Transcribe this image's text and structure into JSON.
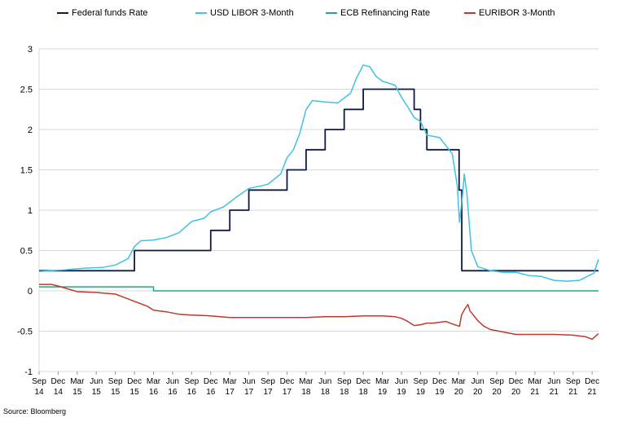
{
  "chart_data": {
    "type": "line",
    "title": "",
    "xlabel": "",
    "ylabel": "",
    "ylim": [
      -1,
      3
    ],
    "yticks": [
      "3",
      "2.5",
      "2",
      "1.5",
      "1",
      "0.5",
      "0",
      "-0.5",
      "-1"
    ],
    "x_ticks": [
      {
        "month": "Sep",
        "year": "14"
      },
      {
        "month": "Dec",
        "year": "14"
      },
      {
        "month": "Mar",
        "year": "15"
      },
      {
        "month": "Jun",
        "year": "15"
      },
      {
        "month": "Sep",
        "year": "15"
      },
      {
        "month": "Dec",
        "year": "15"
      },
      {
        "month": "Mar",
        "year": "16"
      },
      {
        "month": "Jun",
        "year": "16"
      },
      {
        "month": "Sep",
        "year": "16"
      },
      {
        "month": "Dec",
        "year": "16"
      },
      {
        "month": "Mar",
        "year": "17"
      },
      {
        "month": "Jun",
        "year": "17"
      },
      {
        "month": "Sep",
        "year": "17"
      },
      {
        "month": "Dec",
        "year": "17"
      },
      {
        "month": "Mar",
        "year": "18"
      },
      {
        "month": "Jun",
        "year": "18"
      },
      {
        "month": "Sep",
        "year": "18"
      },
      {
        "month": "Dec",
        "year": "18"
      },
      {
        "month": "Mar",
        "year": "19"
      },
      {
        "month": "Jun",
        "year": "19"
      },
      {
        "month": "Sep",
        "year": "19"
      },
      {
        "month": "Dec",
        "year": "19"
      },
      {
        "month": "Mar",
        "year": "20"
      },
      {
        "month": "Jun",
        "year": "20"
      },
      {
        "month": "Sep",
        "year": "20"
      },
      {
        "month": "Dec",
        "year": "20"
      },
      {
        "month": "Mar",
        "year": "21"
      },
      {
        "month": "Jun",
        "year": "21"
      },
      {
        "month": "Sep",
        "year": "21"
      },
      {
        "month": "Dec",
        "year": "21"
      }
    ],
    "grid": "horizontal",
    "legend_position": "top",
    "series": [
      {
        "name": "Federal funds Rate",
        "color": "#0d1b45",
        "step": true,
        "points": [
          [
            "2014-09",
            0.25
          ],
          [
            "2015-12",
            0.5
          ],
          [
            "2016-12",
            0.75
          ],
          [
            "2017-03",
            1.0
          ],
          [
            "2017-06",
            1.25
          ],
          [
            "2017-12",
            1.5
          ],
          [
            "2018-03",
            1.75
          ],
          [
            "2018-06",
            2.0
          ],
          [
            "2018-09",
            2.25
          ],
          [
            "2018-12",
            2.5
          ],
          [
            "2019-08",
            2.25
          ],
          [
            "2019-09",
            2.0
          ],
          [
            "2019-10",
            1.75
          ],
          [
            "2020-03-03",
            1.25
          ],
          [
            "2020-03-16",
            0.25
          ],
          [
            "2021-12-31",
            0.25
          ]
        ]
      },
      {
        "name": "USD LIBOR 3-Month",
        "color": "#3fc2e6",
        "step": false,
        "points": [
          [
            "2014-09",
            0.24
          ],
          [
            "2015-01",
            0.26
          ],
          [
            "2015-04",
            0.28
          ],
          [
            "2015-07",
            0.29
          ],
          [
            "2015-09",
            0.32
          ],
          [
            "2015-11",
            0.4
          ],
          [
            "2015-12",
            0.55
          ],
          [
            "2016-01",
            0.62
          ],
          [
            "2016-03",
            0.63
          ],
          [
            "2016-05",
            0.66
          ],
          [
            "2016-07",
            0.72
          ],
          [
            "2016-09",
            0.86
          ],
          [
            "2016-11",
            0.9
          ],
          [
            "2016-12",
            0.98
          ],
          [
            "2017-02",
            1.04
          ],
          [
            "2017-04",
            1.16
          ],
          [
            "2017-06",
            1.27
          ],
          [
            "2017-09",
            1.32
          ],
          [
            "2017-11",
            1.45
          ],
          [
            "2017-12",
            1.65
          ],
          [
            "2018-01",
            1.75
          ],
          [
            "2018-02",
            1.95
          ],
          [
            "2018-03",
            2.25
          ],
          [
            "2018-04",
            2.36
          ],
          [
            "2018-06",
            2.34
          ],
          [
            "2018-08",
            2.33
          ],
          [
            "2018-10",
            2.45
          ],
          [
            "2018-11",
            2.65
          ],
          [
            "2018-12",
            2.8
          ],
          [
            "2019-01",
            2.78
          ],
          [
            "2019-02",
            2.66
          ],
          [
            "2019-03",
            2.6
          ],
          [
            "2019-05",
            2.55
          ],
          [
            "2019-06",
            2.4
          ],
          [
            "2019-07",
            2.28
          ],
          [
            "2019-08",
            2.15
          ],
          [
            "2019-09",
            2.1
          ],
          [
            "2019-10",
            1.93
          ],
          [
            "2019-12",
            1.9
          ],
          [
            "2020-01",
            1.8
          ],
          [
            "2020-02",
            1.7
          ],
          [
            "2020-02-25",
            1.3
          ],
          [
            "2020-03-05",
            0.85
          ],
          [
            "2020-03-20",
            1.2
          ],
          [
            "2020-03-28",
            1.45
          ],
          [
            "2020-04-10",
            1.2
          ],
          [
            "2020-05-01",
            0.5
          ],
          [
            "2020-06",
            0.3
          ],
          [
            "2020-08",
            0.25
          ],
          [
            "2020-10",
            0.23
          ],
          [
            "2020-12",
            0.23
          ],
          [
            "2021-02",
            0.19
          ],
          [
            "2021-04",
            0.18
          ],
          [
            "2021-06",
            0.13
          ],
          [
            "2021-08",
            0.12
          ],
          [
            "2021-10",
            0.13
          ],
          [
            "2021-11",
            0.17
          ],
          [
            "2021-12-10",
            0.22
          ],
          [
            "2021-12-31",
            0.39
          ]
        ]
      },
      {
        "name": "ECB Refinancing Rate",
        "color": "#25a683",
        "step": true,
        "points": [
          [
            "2014-09",
            0.05
          ],
          [
            "2016-03",
            0.0
          ],
          [
            "2021-12-31",
            0.0
          ]
        ]
      },
      {
        "name": "EURIBOR 3-Month",
        "color": "#c0392b",
        "step": false,
        "points": [
          [
            "2014-09",
            0.08
          ],
          [
            "2014-11",
            0.08
          ],
          [
            "2014-12",
            0.06
          ],
          [
            "2015-03",
            -0.01
          ],
          [
            "2015-06",
            -0.02
          ],
          [
            "2015-09",
            -0.04
          ],
          [
            "2015-10",
            -0.07
          ],
          [
            "2015-12",
            -0.13
          ],
          [
            "2016-02",
            -0.19
          ],
          [
            "2016-03",
            -0.24
          ],
          [
            "2016-05",
            -0.26
          ],
          [
            "2016-07",
            -0.29
          ],
          [
            "2016-09",
            -0.3
          ],
          [
            "2016-12",
            -0.31
          ],
          [
            "2017-03",
            -0.33
          ],
          [
            "2017-06",
            -0.33
          ],
          [
            "2017-09",
            -0.33
          ],
          [
            "2017-12",
            -0.33
          ],
          [
            "2018-03",
            -0.33
          ],
          [
            "2018-06",
            -0.32
          ],
          [
            "2018-09",
            -0.32
          ],
          [
            "2018-12",
            -0.31
          ],
          [
            "2019-03",
            -0.31
          ],
          [
            "2019-05",
            -0.32
          ],
          [
            "2019-06",
            -0.34
          ],
          [
            "2019-07",
            -0.38
          ],
          [
            "2019-08",
            -0.43
          ],
          [
            "2019-09",
            -0.42
          ],
          [
            "2019-10",
            -0.4
          ],
          [
            "2019-11",
            -0.4
          ],
          [
            "2019-12",
            -0.39
          ],
          [
            "2020-01",
            -0.38
          ],
          [
            "2020-02",
            -0.41
          ],
          [
            "2020-03-05",
            -0.44
          ],
          [
            "2020-03-15",
            -0.3
          ],
          [
            "2020-04-01",
            -0.22
          ],
          [
            "2020-04-15",
            -0.17
          ],
          [
            "2020-04-25",
            -0.25
          ],
          [
            "2020-05",
            -0.27
          ],
          [
            "2020-06",
            -0.37
          ],
          [
            "2020-07",
            -0.44
          ],
          [
            "2020-08",
            -0.48
          ],
          [
            "2020-10",
            -0.51
          ],
          [
            "2020-12",
            -0.54
          ],
          [
            "2021-03",
            -0.54
          ],
          [
            "2021-06",
            -0.54
          ],
          [
            "2021-09",
            -0.55
          ],
          [
            "2021-11",
            -0.57
          ],
          [
            "2021-12",
            -0.6
          ],
          [
            "2021-12-31",
            -0.53
          ]
        ]
      }
    ]
  },
  "source": "Source: Bloomberg"
}
